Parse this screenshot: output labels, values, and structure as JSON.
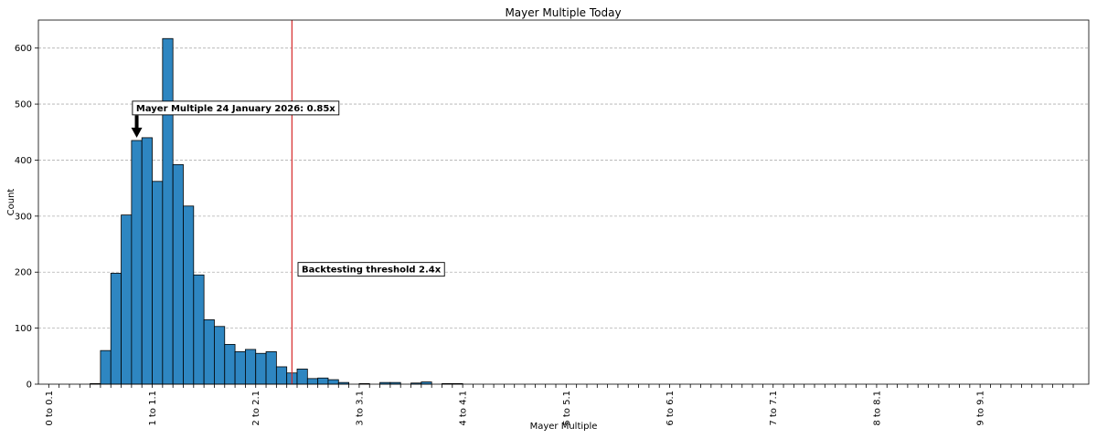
{
  "chart_data": {
    "type": "bar",
    "title": "Mayer Multiple Today",
    "xlabel": "Mayer Multiple",
    "ylabel": "Count",
    "ylim": [
      0,
      650
    ],
    "yticks": [
      0,
      100,
      200,
      300,
      400,
      500,
      600
    ],
    "grid": "y-dashed",
    "bin_width": 0.1,
    "x_start": 0,
    "x_end": 10,
    "tick_labels": [
      "0 to 0.1",
      "1 to 1.1",
      "2 to 2.1",
      "3 to 3.1",
      "4 to 4.1",
      "5 to 5.1",
      "6 to 6.1",
      "7 to 7.1",
      "8 to 8.1",
      "9 to 9.1"
    ],
    "tick_positions": [
      0,
      1,
      2,
      3,
      4,
      5,
      6,
      7,
      8,
      9
    ],
    "values": [
      0,
      0,
      0,
      0,
      1,
      60,
      198,
      302,
      435,
      440,
      362,
      617,
      392,
      318,
      195,
      115,
      103,
      71,
      58,
      62,
      55,
      58,
      31,
      20,
      27,
      10,
      11,
      8,
      3,
      0,
      1,
      0,
      3,
      3,
      0,
      2,
      4,
      0,
      1,
      1,
      0,
      0,
      0,
      0,
      0,
      0,
      0,
      0,
      0,
      0,
      0,
      0,
      0,
      0,
      0,
      0,
      0,
      0,
      0,
      0,
      0,
      0,
      0,
      0,
      0,
      0,
      0,
      0,
      0,
      0,
      0,
      0,
      0,
      0,
      0,
      0,
      0,
      0,
      0,
      0,
      0,
      0,
      0,
      0,
      0,
      0,
      0,
      0,
      0,
      0,
      0,
      0,
      0,
      0,
      0,
      0,
      0,
      0,
      0,
      0
    ],
    "bar_color": "#2e86c1",
    "annotations": [
      {
        "text": "Mayer Multiple 24 January 2026: 0.85x",
        "point": [
          0.8,
          440
        ],
        "label_pos": [
          0.8,
          493
        ]
      },
      {
        "text": "Backtesting threshold 2.4x",
        "point": [
          2.35,
          200
        ],
        "label_pos": [
          2.4,
          205
        ]
      }
    ],
    "threshold": {
      "x": 2.35,
      "color": "#d62728"
    }
  }
}
